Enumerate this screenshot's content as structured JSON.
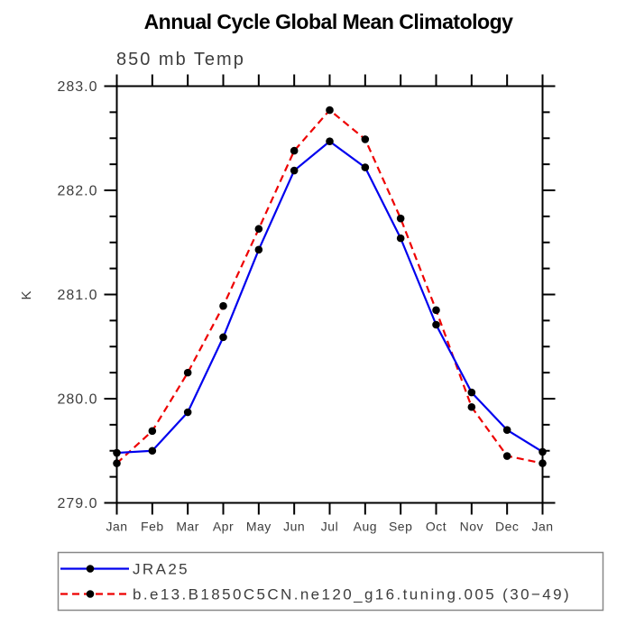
{
  "title": "Annual Cycle Global Mean Climatology",
  "subtitle": "850 mb Temp",
  "y_axis_label": "K",
  "legend": {
    "position": "bottom-left-box",
    "entries": [
      {
        "label": "JRA25",
        "color": "#0000ee",
        "line_style": "solid",
        "marker": "filled-circle",
        "marker_color": "#000000"
      },
      {
        "label": "b.e13.B1850C5CN.ne120_g16.tuning.005 (30−49)",
        "color": "#ee0000",
        "line_style": "dashed",
        "marker": "filled-circle",
        "marker_color": "#000000"
      }
    ]
  },
  "chart_data": {
    "type": "line",
    "title": "Annual Cycle Global Mean Climatology",
    "subtitle": "850 mb Temp",
    "xlabel": "",
    "ylabel": "K",
    "x_categories": [
      "Jan",
      "Feb",
      "Mar",
      "Apr",
      "May",
      "Jun",
      "Jul",
      "Aug",
      "Sep",
      "Oct",
      "Nov",
      "Dec",
      "Jan"
    ],
    "series": [
      {
        "name": "JRA25",
        "color": "#0000ee",
        "style": "solid",
        "marker": "filled-circle",
        "values": [
          279.48,
          279.5,
          279.87,
          280.59,
          281.43,
          282.19,
          282.47,
          282.22,
          281.54,
          280.71,
          280.06,
          279.7,
          279.49
        ]
      },
      {
        "name": "b.e13.B1850C5CN.ne120_g16.tuning.005 (30−49)",
        "color": "#ee0000",
        "style": "dashed",
        "marker": "filled-circle",
        "values": [
          279.38,
          279.69,
          280.25,
          280.89,
          281.63,
          282.38,
          282.77,
          282.49,
          281.73,
          280.85,
          279.92,
          279.45,
          279.38
        ]
      }
    ],
    "ylim": [
      279.0,
      283.0
    ],
    "y_major_tick_step": 1.0,
    "y_minor_tick_step": 0.25,
    "y_major_tick_labels": [
      "279.0",
      "280.0",
      "281.0",
      "282.0",
      "283.0"
    ],
    "grid": false,
    "ticks": "outward-all-four-sides",
    "legend_position": "below-plot-left"
  },
  "colors": {
    "series_1": "#0000ee",
    "series_2": "#ee0000",
    "marker": "#000000",
    "axis": "#000000",
    "axis_text": "#3d3d3d",
    "legend_border": "#888888",
    "background": "#ffffff"
  }
}
